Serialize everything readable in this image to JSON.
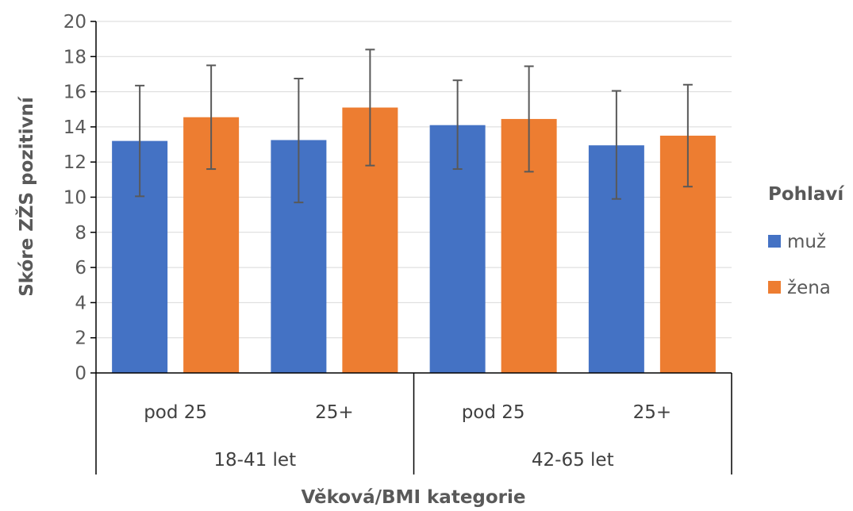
{
  "chart_data": {
    "type": "bar",
    "xlabel": "Věková/BMI kategorie",
    "ylabel": "Skóre ZŽS pozitivní",
    "ylim": [
      0,
      20
    ],
    "yticks": [
      "0",
      "2",
      "4",
      "6",
      "8",
      "10",
      "12",
      "14",
      "16",
      "18",
      "20"
    ],
    "grid": true,
    "legend": {
      "title": "Pohlaví",
      "position": "right"
    },
    "groups": [
      {
        "label": "18-41 let",
        "categories": [
          "pod 25",
          "25+"
        ]
      },
      {
        "label": "42-65 let",
        "categories": [
          "pod 25",
          "25+"
        ]
      }
    ],
    "categories": [
      "pod 25",
      "25+",
      "pod 25",
      "25+"
    ],
    "series": [
      {
        "name": "muž",
        "color": "#4472C4",
        "values": [
          13.2,
          13.25,
          14.1,
          12.95
        ],
        "error_low": [
          10.05,
          9.7,
          11.6,
          9.9
        ],
        "error_high": [
          16.35,
          16.75,
          16.65,
          16.05
        ]
      },
      {
        "name": "žena",
        "color": "#ED7D31",
        "values": [
          14.55,
          15.1,
          14.45,
          13.5
        ],
        "error_low": [
          11.6,
          11.8,
          11.45,
          10.6
        ],
        "error_high": [
          17.5,
          18.4,
          17.45,
          16.4
        ]
      }
    ]
  }
}
